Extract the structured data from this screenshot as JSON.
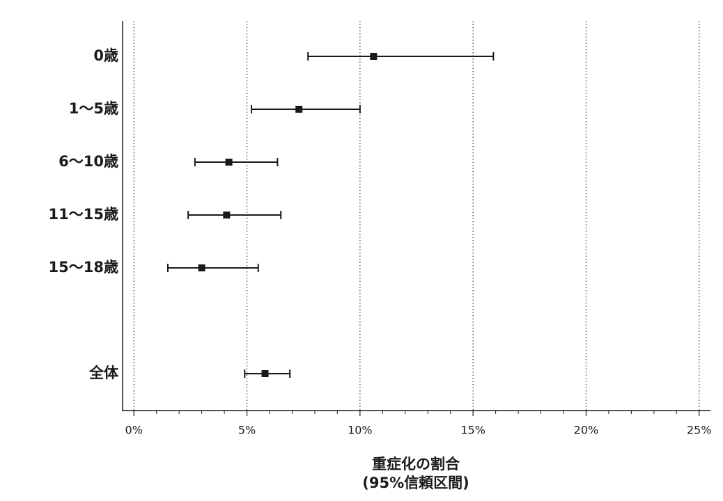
{
  "chart_data": {
    "type": "errorbar",
    "categories": [
      "0歳",
      "1〜5歳",
      "6〜10歳",
      "11〜15歳",
      "15〜18歳",
      null,
      "全体"
    ],
    "values": [
      10.6,
      7.3,
      4.2,
      4.1,
      3.0,
      null,
      5.8
    ],
    "lower": [
      7.7,
      5.2,
      2.7,
      2.4,
      1.5,
      null,
      4.9
    ],
    "upper": [
      15.9,
      10.0,
      6.35,
      6.5,
      5.5,
      null,
      6.9
    ],
    "color": "#1a1a1a",
    "xlim": [
      -0.5,
      25.5
    ],
    "xticks": [
      {
        "value": 0,
        "label": "0%"
      },
      {
        "value": 5,
        "label": "5%"
      },
      {
        "value": 10,
        "label": "10%"
      },
      {
        "value": 15,
        "label": "15%"
      },
      {
        "value": 20,
        "label": "20%"
      },
      {
        "value": 25,
        "label": "25%"
      }
    ],
    "xminorticks": [
      1,
      2,
      3,
      4,
      6,
      7,
      8,
      9,
      11,
      12,
      13,
      14,
      16,
      17,
      18,
      19,
      21,
      22,
      23,
      24
    ],
    "grid": true,
    "xlabel": [
      "重症化の割合",
      "(95%信頼区間)"
    ]
  }
}
